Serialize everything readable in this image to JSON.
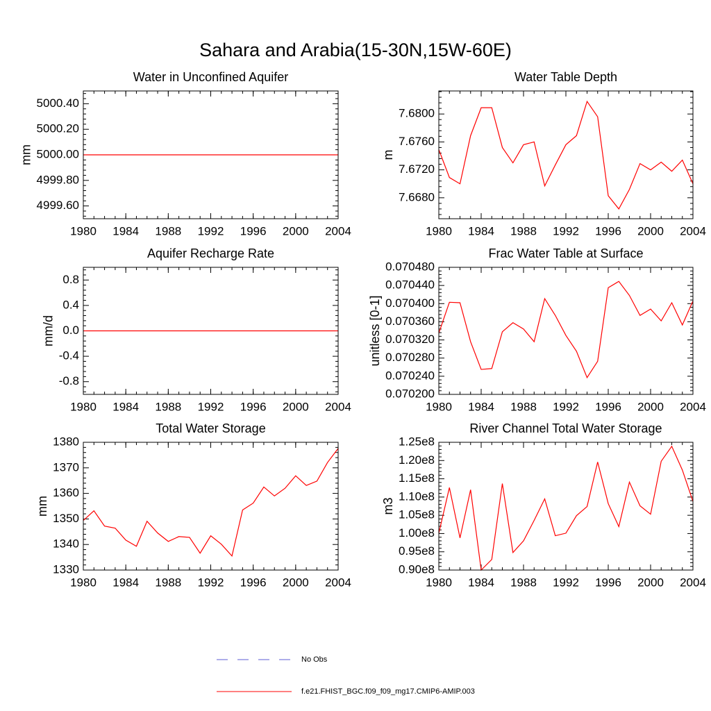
{
  "title": "Sahara and Arabia(15-30N,15W-60E)",
  "legend": [
    {
      "label": "No Obs",
      "color": "#5b5bd6",
      "dash": true
    },
    {
      "label": "f.e21.FHIST_BGC.f09_f09_mg17.CMIP6-AMIP.003",
      "color": "#ff0000",
      "dash": false
    }
  ],
  "chart_data": [
    {
      "type": "line",
      "title": "Water in Unconfined Aquifer",
      "y_label": "mm",
      "color": "#ff0000",
      "x": [
        1980,
        1981,
        1982,
        1983,
        1984,
        1985,
        1986,
        1987,
        1988,
        1989,
        1990,
        1991,
        1992,
        1993,
        1994,
        1995,
        1996,
        1997,
        1998,
        1999,
        2000,
        2001,
        2002,
        2003,
        2004
      ],
      "values": [
        5000,
        5000,
        5000,
        5000,
        5000,
        5000,
        5000,
        5000,
        5000,
        5000,
        5000,
        5000,
        5000,
        5000,
        5000,
        5000,
        5000,
        5000,
        5000,
        5000,
        5000,
        5000,
        5000,
        5000,
        5000
      ],
      "xlim": [
        1980,
        2004
      ],
      "xticks": [
        1980,
        1984,
        1988,
        1992,
        1996,
        2000,
        2004
      ],
      "ylim": [
        4999.5,
        5000.5
      ],
      "yticks": [
        {
          "value": 4999.6,
          "label": "4999.60"
        },
        {
          "value": 4999.8,
          "label": "4999.80"
        },
        {
          "value": 5000.0,
          "label": "5000.00"
        },
        {
          "value": 5000.2,
          "label": "5000.20"
        },
        {
          "value": 5000.4,
          "label": "5000.40"
        }
      ]
    },
    {
      "type": "line",
      "title": "Water Table Depth",
      "y_label": "m",
      "color": "#ff0000",
      "x": [
        1980,
        1981,
        1982,
        1983,
        1984,
        1985,
        1986,
        1987,
        1988,
        1989,
        1990,
        1991,
        1992,
        1993,
        1994,
        1995,
        1996,
        1997,
        1998,
        1999,
        2000,
        2001,
        2002,
        2003,
        2004
      ],
      "values": [
        7.6749,
        7.6709,
        7.67,
        7.6769,
        7.6809,
        7.6809,
        7.6752,
        7.673,
        7.6756,
        7.676,
        7.6697,
        7.6727,
        7.6756,
        7.6769,
        7.6818,
        7.6796,
        7.6683,
        7.6664,
        7.6692,
        7.6729,
        7.672,
        7.6731,
        7.6718,
        7.6734,
        7.67
      ],
      "xlim": [
        1980,
        2004
      ],
      "xticks": [
        1980,
        1984,
        1988,
        1992,
        1996,
        2000,
        2004
      ],
      "ylim": [
        7.665,
        7.6833
      ],
      "yticks": [
        {
          "value": 7.668,
          "label": "7.6680"
        },
        {
          "value": 7.672,
          "label": "7.6720"
        },
        {
          "value": 7.676,
          "label": "7.6760"
        },
        {
          "value": 7.68,
          "label": "7.6800"
        }
      ]
    },
    {
      "type": "line",
      "title": "Aquifer Recharge Rate",
      "y_label": "mm/d",
      "color": "#ff0000",
      "x": [
        1980,
        1981,
        1982,
        1983,
        1984,
        1985,
        1986,
        1987,
        1988,
        1989,
        1990,
        1991,
        1992,
        1993,
        1994,
        1995,
        1996,
        1997,
        1998,
        1999,
        2000,
        2001,
        2002,
        2003,
        2004
      ],
      "values": [
        0,
        0,
        0,
        0,
        0,
        0,
        0,
        0,
        0,
        0,
        0,
        0,
        0,
        0,
        0,
        0,
        0,
        0,
        0,
        0,
        0,
        0,
        0,
        0,
        0
      ],
      "xlim": [
        1980,
        2004
      ],
      "xticks": [
        1980,
        1984,
        1988,
        1992,
        1996,
        2000,
        2004
      ],
      "ylim": [
        -1,
        1
      ],
      "yticks": [
        -0.8,
        -0.4,
        {
          "value": 0,
          "label": "0.0"
        },
        0.4,
        0.8
      ]
    },
    {
      "type": "line",
      "title": "Frac Water Table at Surface",
      "y_label": "unitless [0-1]",
      "color": "#ff0000",
      "x": [
        1980,
        1981,
        1982,
        1983,
        1984,
        1985,
        1986,
        1987,
        1988,
        1989,
        1990,
        1991,
        1992,
        1993,
        1994,
        1995,
        1996,
        1997,
        1998,
        1999,
        2000,
        2001,
        2002,
        2003,
        2004
      ],
      "values": [
        0.070335,
        0.070403,
        0.070402,
        0.070316,
        0.070255,
        0.070257,
        0.070338,
        0.070358,
        0.070344,
        0.070316,
        0.070411,
        0.070374,
        0.07033,
        0.070295,
        0.070237,
        0.070273,
        0.070435,
        0.070449,
        0.070418,
        0.070374,
        0.070388,
        0.070362,
        0.070402,
        0.070353,
        0.070406
      ],
      "xlim": [
        1980,
        2004
      ],
      "xticks": [
        1980,
        1984,
        1988,
        1992,
        1996,
        2000,
        2004
      ],
      "ylim": [
        0.0702,
        0.07048
      ],
      "yticks": [
        {
          "value": 0.0702,
          "label": "0.070200"
        },
        {
          "value": 0.07024,
          "label": "0.070240"
        },
        {
          "value": 0.07028,
          "label": "0.070280"
        },
        {
          "value": 0.07032,
          "label": "0.070320"
        },
        {
          "value": 0.07036,
          "label": "0.070360"
        },
        {
          "value": 0.0704,
          "label": "0.070400"
        },
        {
          "value": 0.07044,
          "label": "0.070440"
        },
        {
          "value": 0.07048,
          "label": "0.070480"
        }
      ]
    },
    {
      "type": "line",
      "title": "Total Water Storage",
      "y_label": "mm",
      "color": "#ff0000",
      "x": [
        1980,
        1981,
        1982,
        1983,
        1984,
        1985,
        1986,
        1987,
        1988,
        1989,
        1990,
        1991,
        1992,
        1993,
        1994,
        1995,
        1996,
        1997,
        1998,
        1999,
        2000,
        2001,
        2002,
        2003,
        2004
      ],
      "values": [
        1349.4,
        1353.2,
        1347.2,
        1346.4,
        1341.7,
        1339.3,
        1349.1,
        1344.5,
        1341.2,
        1343.1,
        1342.8,
        1336.6,
        1343.4,
        1340.1,
        1335.5,
        1353.5,
        1356.2,
        1362.5,
        1359.0,
        1362.0,
        1366.9,
        1363.1,
        1364.8,
        1372.1,
        1377.6
      ],
      "xlim": [
        1980,
        2004
      ],
      "xticks": [
        1980,
        1984,
        1988,
        1992,
        1996,
        2000,
        2004
      ],
      "ylim": [
        1330,
        1380
      ],
      "yticks": [
        1330,
        1340,
        1350,
        1360,
        1370,
        1380
      ]
    },
    {
      "type": "line",
      "title": "River Channel Total Water Storage",
      "y_label": "m3",
      "color": "#ff0000",
      "x": [
        1980,
        1981,
        1982,
        1983,
        1984,
        1985,
        1986,
        1987,
        1988,
        1989,
        1990,
        1991,
        1992,
        1993,
        1994,
        1995,
        1996,
        1997,
        1998,
        1999,
        2000,
        2001,
        2002,
        2003,
        2004
      ],
      "values": [
        100100000,
        112600000,
        98800000,
        112000000,
        90000000,
        92900000,
        113700000,
        94800000,
        98000000,
        103600000,
        109500000,
        99400000,
        100100000,
        104900000,
        107400000,
        119600000,
        108200000,
        101900000,
        114100000,
        107600000,
        105300000,
        119800000,
        123900000,
        117400000,
        108800000
      ],
      "xlim": [
        1980,
        2004
      ],
      "xticks": [
        1980,
        1984,
        1988,
        1992,
        1996,
        2000,
        2004
      ],
      "ylim": [
        90000000,
        125000000
      ],
      "yticks": [
        {
          "value": 90000000,
          "label": "0.90e8"
        },
        {
          "value": 95000000,
          "label": "0.95e8"
        },
        {
          "value": 100000000,
          "label": "1.00e8"
        },
        {
          "value": 105000000,
          "label": "1.05e8"
        },
        {
          "value": 110000000,
          "label": "1.10e8"
        },
        {
          "value": 115000000,
          "label": "1.15e8"
        },
        {
          "value": 120000000,
          "label": "1.20e8"
        },
        {
          "value": 125000000,
          "label": "1.25e8"
        }
      ]
    }
  ]
}
